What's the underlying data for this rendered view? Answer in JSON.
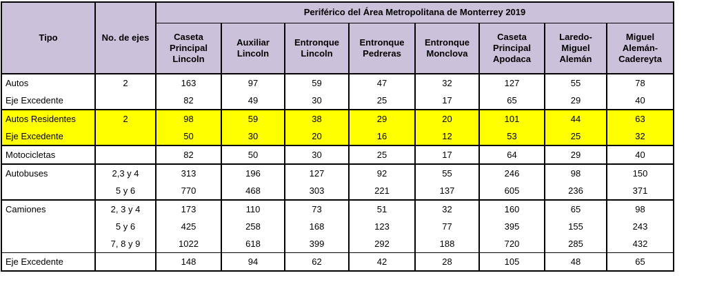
{
  "table": {
    "title": "Periférico del Área Metropolitana de Monterrey 2019",
    "tipo_header": "Tipo",
    "ejes_header": "No. de ejes",
    "toll_columns": [
      "Caseta Principal Lincoln",
      "Auxiliar Lincoln",
      "Entronque Lincoln",
      "Entronque Pedreras",
      "Entronque Monclova",
      "Caseta Principal Apodaca",
      "Laredo-Miguel Alemán",
      "Miguel Alemán-Cadereyta"
    ],
    "rows": [
      {
        "tipo": "Autos",
        "ejes": "2",
        "values": [
          "163",
          "97",
          "59",
          "47",
          "32",
          "127",
          "55",
          "78"
        ],
        "highlight": false,
        "separator": "none"
      },
      {
        "tipo": "Eje Excedente",
        "ejes": "",
        "values": [
          "82",
          "49",
          "30",
          "25",
          "17",
          "65",
          "29",
          "40"
        ],
        "highlight": false,
        "separator": "none"
      },
      {
        "tipo": "Autos Residentes",
        "ejes": "2",
        "values": [
          "98",
          "59",
          "38",
          "29",
          "20",
          "101",
          "44",
          "63"
        ],
        "highlight": true,
        "separator": "thick"
      },
      {
        "tipo": "Eje Excedente",
        "ejes": "",
        "values": [
          "50",
          "30",
          "20",
          "16",
          "12",
          "53",
          "25",
          "32"
        ],
        "highlight": true,
        "separator": "none"
      },
      {
        "tipo": "Motocicletas",
        "ejes": "",
        "values": [
          "82",
          "50",
          "30",
          "25",
          "17",
          "64",
          "29",
          "40"
        ],
        "highlight": false,
        "separator": "thick"
      },
      {
        "tipo": "Autobuses",
        "ejes": "2,3 y 4",
        "values": [
          "313",
          "196",
          "127",
          "92",
          "55",
          "246",
          "98",
          "150"
        ],
        "highlight": false,
        "separator": "thick"
      },
      {
        "tipo": "",
        "ejes": "5 y 6",
        "values": [
          "770",
          "468",
          "303",
          "221",
          "137",
          "605",
          "236",
          "371"
        ],
        "highlight": false,
        "separator": "none"
      },
      {
        "tipo": "Camiones",
        "ejes": "2, 3 y 4",
        "values": [
          "173",
          "110",
          "73",
          "51",
          "32",
          "160",
          "65",
          "98"
        ],
        "highlight": false,
        "separator": "thick"
      },
      {
        "tipo": "",
        "ejes": "5 y 6",
        "values": [
          "425",
          "258",
          "168",
          "123",
          "77",
          "395",
          "155",
          "243"
        ],
        "highlight": false,
        "separator": "none"
      },
      {
        "tipo": "",
        "ejes": "7, 8 y 9",
        "values": [
          "1022",
          "618",
          "399",
          "292",
          "188",
          "720",
          "285",
          "432"
        ],
        "highlight": false,
        "separator": "none"
      },
      {
        "tipo": "Eje Excedente",
        "ejes": "",
        "values": [
          "148",
          "94",
          "62",
          "42",
          "28",
          "105",
          "48",
          "65"
        ],
        "highlight": false,
        "separator": "thin"
      }
    ],
    "colors": {
      "header_bg": "#ccc1da",
      "highlight_bg": "#ffff00",
      "border": "#000000"
    }
  }
}
